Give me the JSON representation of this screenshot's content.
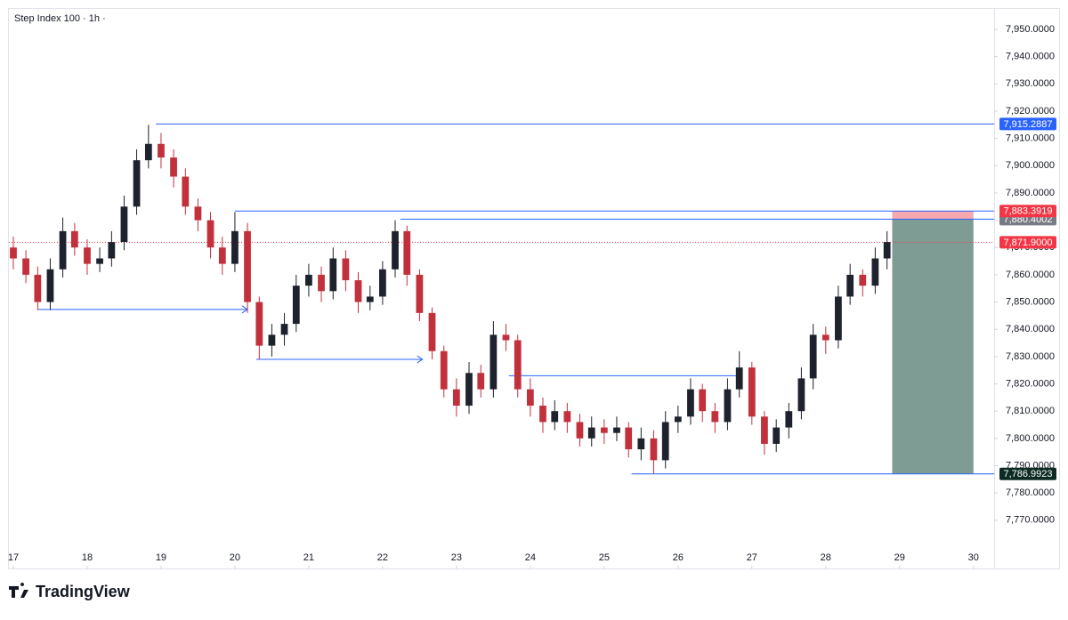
{
  "chart_data": {
    "type": "candlestick",
    "title": "Step Index 100 · 1h ·",
    "brand": "TradingView",
    "x": [
      17,
      17.17,
      17.33,
      17.5,
      17.67,
      17.83,
      18,
      18.17,
      18.33,
      18.5,
      18.67,
      18.83,
      19,
      19.17,
      19.33,
      19.5,
      19.67,
      19.83,
      20,
      20.17,
      20.33,
      20.5,
      20.67,
      20.83,
      21,
      21.17,
      21.33,
      21.5,
      21.67,
      21.83,
      22,
      22.17,
      22.33,
      22.5,
      22.67,
      22.83,
      23,
      23.17,
      23.33,
      23.5,
      23.67,
      23.83,
      24,
      24.17,
      24.33,
      24.5,
      24.67,
      24.83,
      25,
      25.17,
      25.33,
      25.5,
      25.67,
      25.83,
      26,
      26.17,
      26.33,
      26.5,
      26.67,
      26.83,
      27,
      27.17,
      27.33,
      27.5,
      27.67,
      27.83,
      28,
      28.17,
      28.33,
      28.5,
      28.67,
      28.83
    ],
    "open": [
      7870,
      7866,
      7860,
      7850,
      7862,
      7876,
      7870,
      7864,
      7866,
      7872,
      7885,
      7902,
      7908,
      7903,
      7896,
      7885,
      7880,
      7870,
      7864,
      7876,
      7850,
      7834,
      7838,
      7842,
      7856,
      7860,
      7854,
      7866,
      7858,
      7850,
      7852,
      7862,
      7876,
      7860,
      7846,
      7832,
      7818,
      7812,
      7824,
      7818,
      7838,
      7836,
      7818,
      7812,
      7806,
      7810,
      7806,
      7800,
      7804,
      7802,
      7804,
      7796,
      7800,
      7792,
      7806,
      7808,
      7818,
      7810,
      7806,
      7818,
      7826,
      7808,
      7798,
      7804,
      7810,
      7822,
      7838,
      7836,
      7852,
      7860,
      7856,
      7866
    ],
    "high": [
      7874,
      7869,
      7863,
      7866,
      7881,
      7879,
      7873,
      7870,
      7876,
      7889,
      7906,
      7915,
      7912,
      7906,
      7899,
      7888,
      7883,
      7874,
      7883,
      7879,
      7852,
      7842,
      7846,
      7860,
      7864,
      7863,
      7870,
      7869,
      7861,
      7856,
      7865,
      7880,
      7878,
      7862,
      7848,
      7834,
      7822,
      7828,
      7827,
      7843,
      7842,
      7838,
      7822,
      7815,
      7814,
      7813,
      7809,
      7808,
      7807,
      7808,
      7806,
      7804,
      7803,
      7810,
      7812,
      7822,
      7820,
      7813,
      7822,
      7832,
      7828,
      7810,
      7807,
      7813,
      7826,
      7842,
      7841,
      7856,
      7864,
      7862,
      7870,
      7876
    ],
    "low": [
      7862,
      7857,
      7847,
      7847,
      7859,
      7867,
      7860,
      7861,
      7863,
      7869,
      7882,
      7899,
      7899,
      7892,
      7882,
      7876,
      7866,
      7860,
      7861,
      7846,
      7829,
      7830,
      7834,
      7839,
      7852,
      7850,
      7851,
      7854,
      7846,
      7847,
      7849,
      7859,
      7856,
      7843,
      7829,
      7815,
      7808,
      7809,
      7815,
      7815,
      7832,
      7815,
      7808,
      7802,
      7803,
      7802,
      7797,
      7797,
      7798,
      7799,
      7793,
      7792,
      7787,
      7789,
      7802,
      7805,
      7806,
      7802,
      7803,
      7815,
      7805,
      7794,
      7795,
      7800,
      7807,
      7818,
      7831,
      7833,
      7849,
      7852,
      7853,
      7862
    ],
    "close": [
      7866,
      7860,
      7850,
      7862,
      7876,
      7870,
      7864,
      7866,
      7872,
      7885,
      7902,
      7908,
      7903,
      7896,
      7885,
      7880,
      7870,
      7864,
      7876,
      7850,
      7834,
      7838,
      7842,
      7856,
      7860,
      7854,
      7866,
      7858,
      7850,
      7852,
      7862,
      7876,
      7860,
      7846,
      7832,
      7818,
      7812,
      7824,
      7818,
      7838,
      7836,
      7818,
      7812,
      7806,
      7810,
      7806,
      7800,
      7804,
      7802,
      7804,
      7796,
      7800,
      7792,
      7806,
      7808,
      7818,
      7810,
      7806,
      7818,
      7826,
      7808,
      7798,
      7804,
      7810,
      7822,
      7838,
      7836,
      7852,
      7860,
      7856,
      7866,
      7872
    ],
    "up_color": "#1e222d",
    "down_color": "#c2303b",
    "xlim": [
      16.94,
      30.28
    ],
    "xticks": [
      17,
      18,
      19,
      20,
      21,
      22,
      23,
      24,
      25,
      26,
      27,
      28,
      29,
      30
    ],
    "ylim": [
      7752,
      7957.5
    ],
    "yticks": [
      {
        "value": 7950,
        "label": "7,950.0000"
      },
      {
        "value": 7940,
        "label": "7,940.0000"
      },
      {
        "value": 7930,
        "label": "7,930.0000"
      },
      {
        "value": 7920,
        "label": "7,920.0000"
      },
      {
        "value": 7910,
        "label": "7,910.0000"
      },
      {
        "value": 7900,
        "label": "7,900.0000"
      },
      {
        "value": 7890,
        "label": "7,890.0000"
      },
      {
        "value": 7880,
        "label": "7,880.0000"
      },
      {
        "value": 7870,
        "label": "7,870.0000"
      },
      {
        "value": 7860,
        "label": "7,860.0000"
      },
      {
        "value": 7850,
        "label": "7,850.0000"
      },
      {
        "value": 7840,
        "label": "7,840.0000"
      },
      {
        "value": 7830,
        "label": "7,830.0000"
      },
      {
        "value": 7820,
        "label": "7,820.0000"
      },
      {
        "value": 7810,
        "label": "7,810.0000"
      },
      {
        "value": 7800,
        "label": "7,800.0000"
      },
      {
        "value": 7790,
        "label": "7,790.0000"
      },
      {
        "value": 7780,
        "label": "7,780.0000"
      },
      {
        "value": 7770,
        "label": "7,770.0000"
      }
    ],
    "levels": [
      {
        "value": 7915.2887,
        "label": "7,915.2887",
        "color": "#2962ff",
        "line_color": "#2962ff",
        "from": 18.93
      },
      {
        "value": 7880.4002,
        "label": "7,880.4002",
        "color": "#787b86",
        "line_color": "#2962ff",
        "from": 22.24
      },
      {
        "value": 7883.3919,
        "label": "7,883.3919",
        "color": "#f23645",
        "line_color": "#2962ff",
        "from": 20.0
      },
      {
        "value": 7871.9,
        "label": "7,871.9000",
        "color": "#f23645",
        "line_color": "#f23645",
        "from": 16.94,
        "dotted": true
      },
      {
        "value": 7786.9923,
        "label": "7,786.9923",
        "color": "#0d2b22",
        "line_color": "#2962ff",
        "from": 25.37
      }
    ],
    "arrows": [
      {
        "y": 7847.3,
        "x": [
          17.33,
          20.17
        ]
      },
      {
        "y": 7829,
        "x": [
          20.29,
          22.54
        ]
      },
      {
        "y": 7823,
        "x": [
          23.71,
          26.82
        ],
        "head": false
      }
    ],
    "position": {
      "x": [
        28.9,
        30
      ],
      "stop_color": "#f7a7ae",
      "target_color": "#7f9c94"
    }
  }
}
